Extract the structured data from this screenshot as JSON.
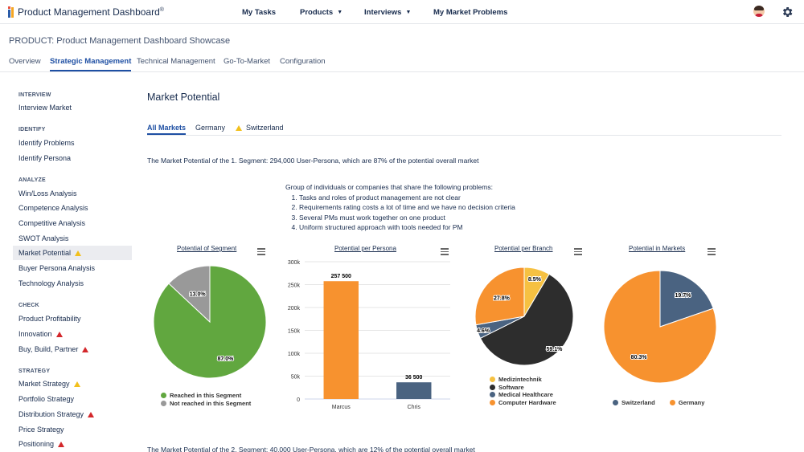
{
  "app": {
    "logo_text": "Product Management Dashboard",
    "logo_mark": "®"
  },
  "topnav": [
    {
      "label": "My Tasks"
    },
    {
      "label": "Products"
    },
    {
      "label": "Interviews"
    },
    {
      "label": "My Market Problems"
    }
  ],
  "product": {
    "title": "PRODUCT: Product Management Dashboard Showcase"
  },
  "tabs": [
    "Overview",
    "Strategic Management",
    "Technical Management",
    "Go-To-Market",
    "Configuration"
  ],
  "sidebar": {
    "interview": {
      "heading": "INTERVIEW",
      "items": [
        "Interview Market"
      ]
    },
    "identify": {
      "heading": "IDENTIFY",
      "items": [
        "Identify Problems",
        "Identify Persona"
      ]
    },
    "analyze": {
      "heading": "ANALYZE",
      "items": [
        "Win/Loss Analysis",
        "Competence Analysis",
        "Competitive Analysis",
        "SWOT Analysis",
        "Market Potential",
        "Buyer Persona Analysis",
        "Technology Analysis"
      ]
    },
    "check": {
      "heading": "CHECK",
      "items": [
        "Product Profitability",
        "Innovation",
        "Buy, Build, Partner"
      ]
    },
    "strategy": {
      "heading": "STRATEGY",
      "items": [
        "Market Strategy",
        "Portfolio Strategy",
        "Distribution Strategy",
        "Price Strategy",
        "Positioning"
      ]
    }
  },
  "main": {
    "title": "Market Potential",
    "subtabs": [
      "All Markets",
      "Germany",
      "Switzerland"
    ],
    "segment1_text": "The Market Potential of the 1. Segment: 294,000 User-Persona, which are 87% of the potential overall market",
    "segment2_text": "The Market Potential of the 2. Segment: 40,000 User-Persona, which are 12% of the potential overall market",
    "problems_intro": "Group of individuals or companies that share the following problems:",
    "problems": [
      "Tasks and roles of product management are not clear",
      "Requirements rating costs a lot of time and we have no decision criteria",
      "Several PMs must work together on one product",
      "Uniform structured approach with tools needed for PM"
    ]
  },
  "charts": {
    "segment": {
      "title": "Potential of Segment",
      "chart_data": {
        "type": "pie",
        "labels": [
          "Reached in this Segment",
          "Not reached in this Segment"
        ],
        "values": [
          87.0,
          13.0
        ],
        "value_labels": [
          "87.0%",
          "13.0%"
        ],
        "colors": [
          "#61a73f",
          "#999999"
        ],
        "legend": "bottom"
      }
    },
    "persona": {
      "title": "Potential per Persona",
      "chart_data": {
        "type": "bar",
        "categories": [
          "Marcus",
          "Chris"
        ],
        "values": [
          257500,
          36500
        ],
        "value_labels": [
          "257 500",
          "36 500"
        ],
        "colors": [
          "#f7922f",
          "#4a6381"
        ],
        "ylim": [
          0,
          300000
        ],
        "yticks": [
          0,
          50000,
          100000,
          150000,
          200000,
          250000,
          300000
        ],
        "ytick_labels": [
          "0",
          "50k",
          "100k",
          "150k",
          "200k",
          "250k",
          "300k"
        ]
      }
    },
    "branch": {
      "title": "Potential per Branch",
      "chart_data": {
        "type": "pie",
        "labels": [
          "Medizintechnik",
          "Software",
          "Medical Healthcare",
          "Computer Hardware"
        ],
        "values": [
          8.5,
          59.1,
          4.6,
          27.8
        ],
        "value_labels": [
          "8.5%",
          "59.1%",
          "4.6%",
          "27.8%"
        ],
        "colors": [
          "#f6c142",
          "#2d2d2d",
          "#4a6381",
          "#f7922f"
        ],
        "legend": "bottom"
      }
    },
    "markets": {
      "title": "Potential in Markets",
      "chart_data": {
        "type": "pie",
        "labels": [
          "Switzerland",
          "Germany"
        ],
        "values": [
          19.7,
          80.3
        ],
        "value_labels": [
          "19.7%",
          "80.3%"
        ],
        "colors": [
          "#4a6381",
          "#f7922f"
        ],
        "legend": "bottom"
      }
    }
  }
}
